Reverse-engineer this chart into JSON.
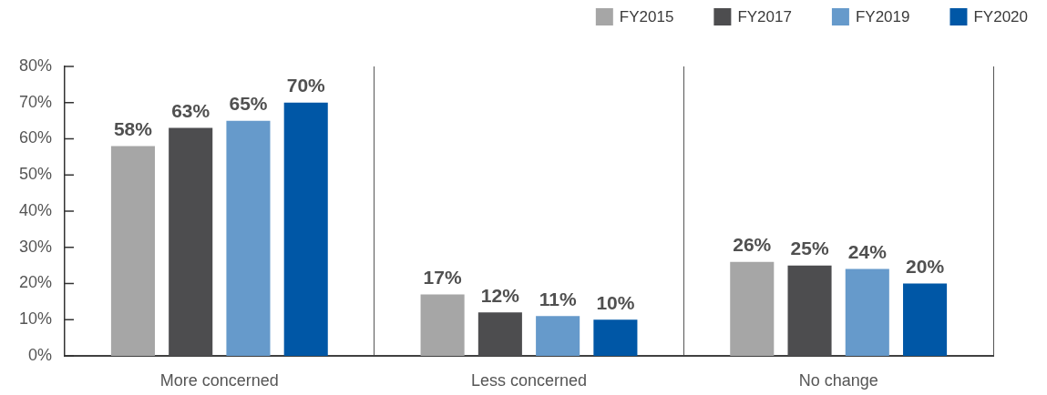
{
  "chart_data": {
    "type": "bar",
    "categories": [
      "More concerned",
      "Less concerned",
      "No change"
    ],
    "series": [
      {
        "name": "FY2015",
        "color": "#a6a6a6",
        "values": [
          58,
          17,
          26
        ],
        "value_labels": [
          "58%",
          "17%",
          "26%"
        ]
      },
      {
        "name": "FY2017",
        "color": "#4d4d4f",
        "values": [
          63,
          12,
          25
        ],
        "value_labels": [
          "63%",
          "12%",
          "25%"
        ]
      },
      {
        "name": "FY2019",
        "color": "#669acb",
        "values": [
          65,
          11,
          24
        ],
        "value_labels": [
          "65%",
          "11%",
          "24%"
        ]
      },
      {
        "name": "FY2020",
        "color": "#0057a6",
        "values": [
          70,
          10,
          20
        ],
        "value_labels": [
          "70%",
          "10%",
          "20%"
        ]
      }
    ],
    "ylim": [
      0,
      80
    ],
    "yticks": [
      {
        "value": 0,
        "label": "0%"
      },
      {
        "value": 10,
        "label": "10%"
      },
      {
        "value": 20,
        "label": "20%"
      },
      {
        "value": 30,
        "label": "30%"
      },
      {
        "value": 40,
        "label": "40%"
      },
      {
        "value": 50,
        "label": "50%"
      },
      {
        "value": 60,
        "label": "60%"
      },
      {
        "value": 70,
        "label": "70%"
      },
      {
        "value": 80,
        "label": "80%"
      }
    ],
    "grid": "x",
    "legend": "top right"
  }
}
